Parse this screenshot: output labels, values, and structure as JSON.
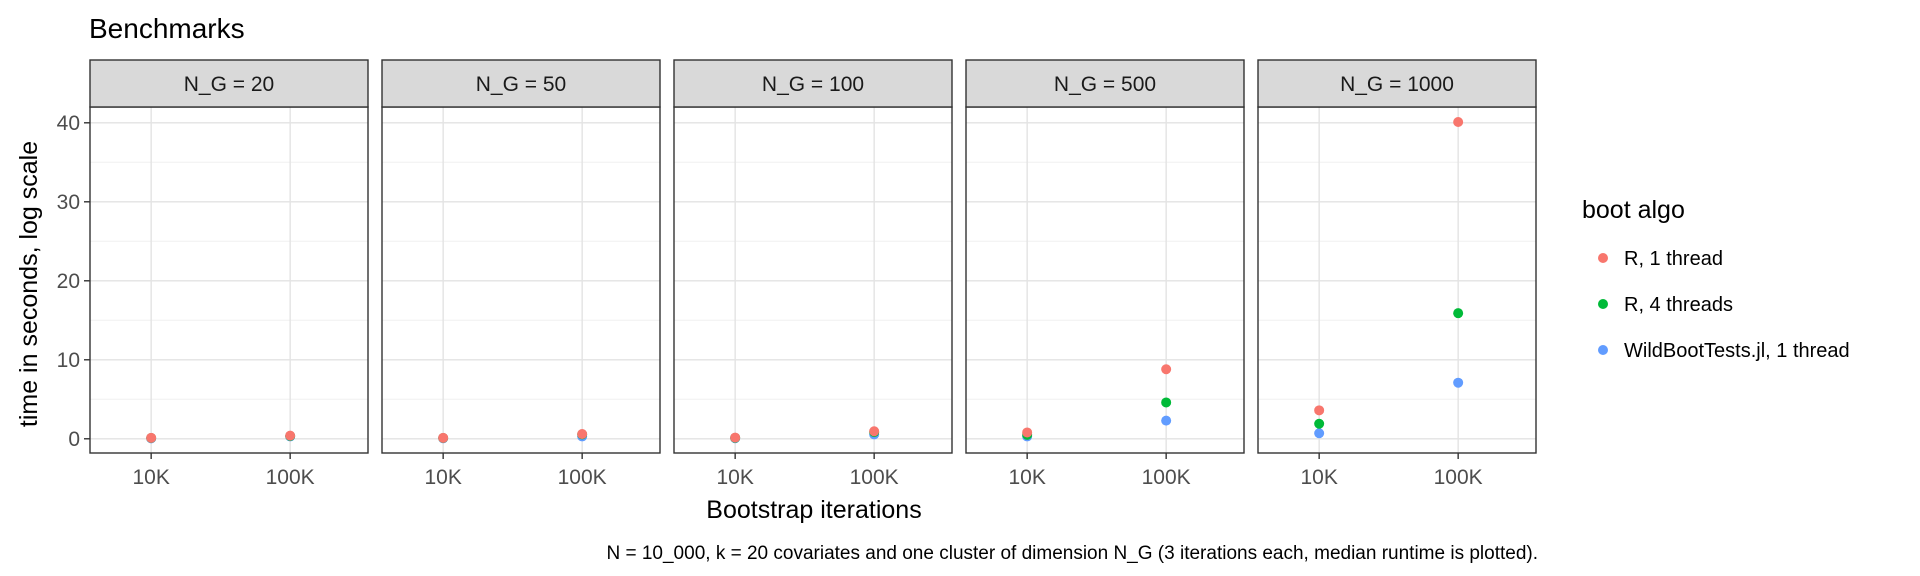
{
  "chart_data": {
    "type": "scatter",
    "title": "Benchmarks",
    "xlabel": "Bootstrap iterations",
    "ylabel": "time in seconds, log scale",
    "caption": "N = 10_000, k = 20 covariates and one cluster of dimension N_G (3 iterations each, median runtime is plotted).",
    "x_categories": [
      "10K",
      "100K"
    ],
    "y_ticks": [
      0,
      10,
      20,
      30,
      40
    ],
    "ylim": [
      -1.8,
      42
    ],
    "grid": true,
    "legend": {
      "title": "boot algo",
      "position": "right",
      "entries": [
        "R, 1 thread",
        "R, 4 threads",
        "WildBootTests.jl, 1 thread"
      ]
    },
    "series": [
      {
        "name": "R, 1 thread",
        "color": "#F8766D"
      },
      {
        "name": "R, 4 threads",
        "color": "#00BA38"
      },
      {
        "name": "WildBootTests.jl, 1 thread",
        "color": "#619CFF"
      }
    ],
    "facets": [
      {
        "label": "N_G = 20",
        "points": [
          {
            "series": 0,
            "x": "10K",
            "y": 0.12
          },
          {
            "series": 0,
            "x": "100K",
            "y": 0.4
          },
          {
            "series": 1,
            "x": "10K",
            "y": 0.1
          },
          {
            "series": 1,
            "x": "100K",
            "y": 0.35
          },
          {
            "series": 2,
            "x": "10K",
            "y": 0.05
          },
          {
            "series": 2,
            "x": "100K",
            "y": 0.3
          }
        ]
      },
      {
        "label": "N_G = 50",
        "points": [
          {
            "series": 0,
            "x": "10K",
            "y": 0.12
          },
          {
            "series": 0,
            "x": "100K",
            "y": 0.6
          },
          {
            "series": 1,
            "x": "10K",
            "y": 0.1
          },
          {
            "series": 1,
            "x": "100K",
            "y": 0.55
          },
          {
            "series": 2,
            "x": "10K",
            "y": 0.06
          },
          {
            "series": 2,
            "x": "100K",
            "y": 0.3
          }
        ]
      },
      {
        "label": "N_G = 100",
        "points": [
          {
            "series": 0,
            "x": "10K",
            "y": 0.15
          },
          {
            "series": 0,
            "x": "100K",
            "y": 0.95
          },
          {
            "series": 1,
            "x": "10K",
            "y": 0.12
          },
          {
            "series": 1,
            "x": "100K",
            "y": 0.85
          },
          {
            "series": 2,
            "x": "10K",
            "y": 0.07
          },
          {
            "series": 2,
            "x": "100K",
            "y": 0.55
          }
        ]
      },
      {
        "label": "N_G = 500",
        "points": [
          {
            "series": 0,
            "x": "10K",
            "y": 0.8
          },
          {
            "series": 0,
            "x": "100K",
            "y": 8.8
          },
          {
            "series": 1,
            "x": "10K",
            "y": 0.5
          },
          {
            "series": 1,
            "x": "100K",
            "y": 4.6
          },
          {
            "series": 2,
            "x": "10K",
            "y": 0.3
          },
          {
            "series": 2,
            "x": "100K",
            "y": 2.3
          }
        ]
      },
      {
        "label": "N_G = 1000",
        "points": [
          {
            "series": 0,
            "x": "10K",
            "y": 3.6
          },
          {
            "series": 0,
            "x": "100K",
            "y": 40.1
          },
          {
            "series": 1,
            "x": "10K",
            "y": 1.9
          },
          {
            "series": 1,
            "x": "100K",
            "y": 15.9
          },
          {
            "series": 2,
            "x": "10K",
            "y": 0.7
          },
          {
            "series": 2,
            "x": "100K",
            "y": 7.1
          }
        ]
      }
    ]
  }
}
